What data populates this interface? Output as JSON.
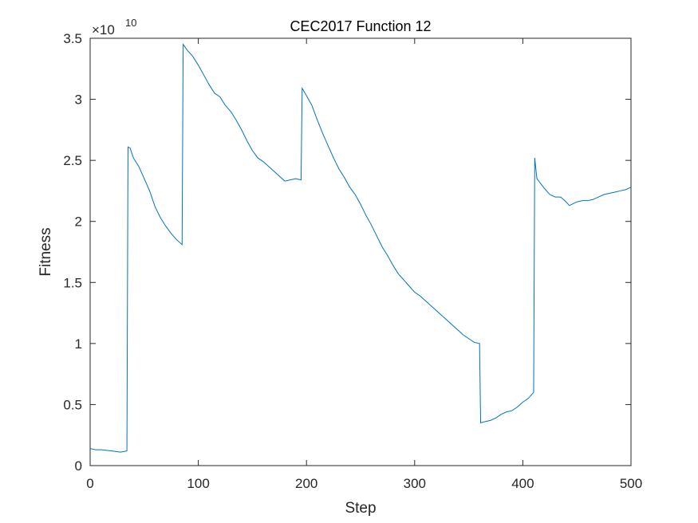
{
  "chart_data": {
    "type": "line",
    "title": "CEC2017 Function 12",
    "x_label": "Step",
    "y_label": "Fitness",
    "y_multiplier": {
      "base": "×10",
      "exponent": "10"
    },
    "xlim": [
      0,
      500
    ],
    "xticks": [
      0,
      100,
      200,
      300,
      400,
      500
    ],
    "ylim": [
      0,
      3.5
    ],
    "yticks": [
      0,
      0.5,
      1,
      1.5,
      2,
      2.5,
      3,
      3.5
    ],
    "grid": false,
    "x": [
      0,
      5,
      10,
      20,
      28,
      34,
      35,
      37,
      40,
      45,
      50,
      55,
      60,
      65,
      70,
      75,
      80,
      85,
      86,
      90,
      95,
      100,
      105,
      110,
      115,
      120,
      125,
      130,
      135,
      140,
      145,
      150,
      155,
      160,
      165,
      170,
      175,
      180,
      185,
      190,
      195,
      196,
      200,
      205,
      210,
      215,
      220,
      225,
      230,
      235,
      240,
      245,
      250,
      255,
      260,
      265,
      270,
      275,
      280,
      285,
      290,
      295,
      300,
      305,
      310,
      315,
      320,
      325,
      330,
      335,
      340,
      345,
      350,
      355,
      360,
      361,
      365,
      370,
      375,
      380,
      385,
      390,
      395,
      400,
      405,
      410,
      411,
      413,
      420,
      425,
      430,
      435,
      440,
      443,
      450,
      455,
      460,
      465,
      470,
      475,
      480,
      485,
      490,
      495,
      500
    ],
    "series": [
      {
        "name": "Fitness",
        "color": "#0072bd",
        "values": [
          0.14,
          0.13,
          0.13,
          0.12,
          0.11,
          0.12,
          2.61,
          2.6,
          2.52,
          2.45,
          2.35,
          2.25,
          2.12,
          2.03,
          1.96,
          1.9,
          1.85,
          1.81,
          3.45,
          3.4,
          3.35,
          3.28,
          3.2,
          3.12,
          3.05,
          3.02,
          2.95,
          2.9,
          2.83,
          2.75,
          2.66,
          2.58,
          2.52,
          2.49,
          2.45,
          2.41,
          2.37,
          2.33,
          2.34,
          2.35,
          2.34,
          3.09,
          3.03,
          2.95,
          2.83,
          2.72,
          2.62,
          2.52,
          2.43,
          2.36,
          2.28,
          2.22,
          2.14,
          2.05,
          1.97,
          1.88,
          1.79,
          1.72,
          1.64,
          1.57,
          1.52,
          1.47,
          1.42,
          1.39,
          1.35,
          1.31,
          1.27,
          1.23,
          1.19,
          1.15,
          1.11,
          1.07,
          1.04,
          1.01,
          1.0,
          0.35,
          0.36,
          0.37,
          0.39,
          0.42,
          0.44,
          0.45,
          0.48,
          0.52,
          0.55,
          0.6,
          2.52,
          2.35,
          2.27,
          2.22,
          2.2,
          2.2,
          2.16,
          2.13,
          2.16,
          2.17,
          2.17,
          2.18,
          2.2,
          2.22,
          2.23,
          2.24,
          2.25,
          2.26,
          2.28
        ]
      }
    ]
  }
}
